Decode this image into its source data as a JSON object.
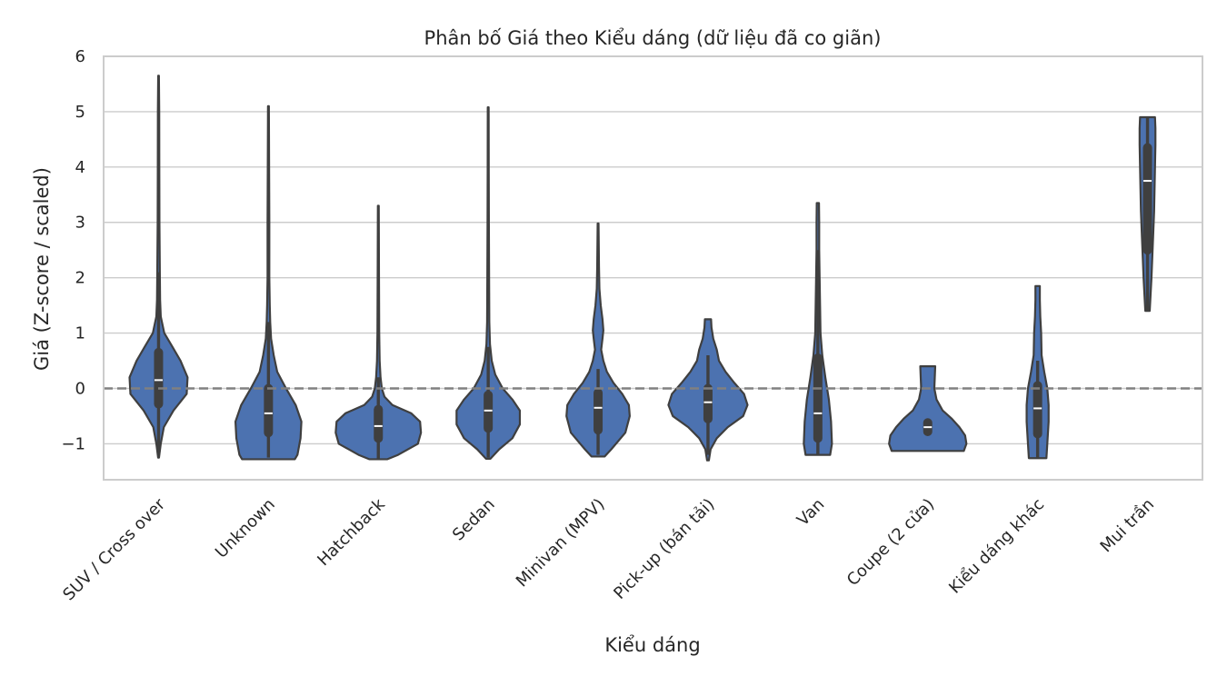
{
  "chart_data": {
    "type": "violin",
    "title": "Phân bố Giá theo Kiểu dáng (dữ liệu đã co giãn)",
    "xlabel": "Kiểu dáng",
    "ylabel": "Giá (Z-score / scaled)",
    "ylim": [
      -1.65,
      6
    ],
    "yticks": [
      -1,
      0,
      1,
      2,
      3,
      4,
      5,
      6
    ],
    "ytick_labels": [
      "−1",
      "0",
      "1",
      "2",
      "3",
      "4",
      "5",
      "6"
    ],
    "grid": true,
    "reference_line": {
      "y": 0,
      "style": "dashed",
      "color": "#808080"
    },
    "fill_color": "#4c72b0",
    "categories": [
      "SUV / Cross over",
      "Unknown",
      "Hatchback",
      "Sedan",
      "Minivan (MPV)",
      "Pick-up (bán tải)",
      "Van",
      "Coupe (2 cửa)",
      "Kiểu dáng khác",
      "Mui trần"
    ],
    "series": [
      {
        "min": -1.25,
        "max": 5.65,
        "q1": -0.28,
        "median": 0.15,
        "q3": 0.65,
        "whisker_low": -1.2,
        "whisker_high": 2.1,
        "profile": [
          [
            -1.25,
            0.01
          ],
          [
            -1.0,
            0.05
          ],
          [
            -0.7,
            0.12
          ],
          [
            -0.4,
            0.34
          ],
          [
            -0.1,
            0.64
          ],
          [
            0.2,
            0.66
          ],
          [
            0.5,
            0.5
          ],
          [
            0.8,
            0.28
          ],
          [
            1.0,
            0.13
          ],
          [
            1.3,
            0.05
          ],
          [
            1.6,
            0.035
          ],
          [
            2.0,
            0.03
          ],
          [
            2.5,
            0.025
          ],
          [
            3.0,
            0.02
          ],
          [
            4.0,
            0.017
          ],
          [
            5.0,
            0.015
          ],
          [
            5.65,
            0.008
          ]
        ]
      },
      {
        "min": -1.28,
        "max": 5.1,
        "q1": -0.8,
        "median": -0.45,
        "q3": 0.0,
        "whisker_low": -1.25,
        "whisker_high": 1.2,
        "profile": [
          [
            -1.28,
            0.6
          ],
          [
            -1.2,
            0.66
          ],
          [
            -0.9,
            0.73
          ],
          [
            -0.6,
            0.75
          ],
          [
            -0.3,
            0.62
          ],
          [
            0.0,
            0.4
          ],
          [
            0.3,
            0.2
          ],
          [
            0.6,
            0.12
          ],
          [
            0.9,
            0.06
          ],
          [
            1.2,
            0.04
          ],
          [
            1.5,
            0.03
          ],
          [
            2.0,
            0.02
          ],
          [
            3.0,
            0.02
          ],
          [
            4.0,
            0.015
          ],
          [
            5.1,
            0.01
          ]
        ]
      },
      {
        "min": -1.28,
        "max": 3.3,
        "q1": -0.9,
        "median": -0.68,
        "q3": -0.38,
        "whisker_low": -1.28,
        "whisker_high": 0.2,
        "profile": [
          [
            -1.28,
            0.2
          ],
          [
            -1.2,
            0.45
          ],
          [
            -1.0,
            0.9
          ],
          [
            -0.8,
            0.97
          ],
          [
            -0.6,
            0.95
          ],
          [
            -0.45,
            0.75
          ],
          [
            -0.3,
            0.32
          ],
          [
            -0.15,
            0.14
          ],
          [
            0.0,
            0.08
          ],
          [
            0.2,
            0.05
          ],
          [
            0.5,
            0.03
          ],
          [
            1.0,
            0.02
          ],
          [
            2.0,
            0.015
          ],
          [
            3.3,
            0.01
          ]
        ]
      },
      {
        "min": -1.27,
        "max": 5.08,
        "q1": -0.72,
        "median": -0.4,
        "q3": -0.12,
        "whisker_low": -1.25,
        "whisker_high": 0.75,
        "profile": [
          [
            -1.27,
            0.05
          ],
          [
            -1.1,
            0.25
          ],
          [
            -0.9,
            0.55
          ],
          [
            -0.65,
            0.72
          ],
          [
            -0.4,
            0.72
          ],
          [
            -0.2,
            0.55
          ],
          [
            0.0,
            0.33
          ],
          [
            0.25,
            0.16
          ],
          [
            0.5,
            0.08
          ],
          [
            0.8,
            0.04
          ],
          [
            1.2,
            0.025
          ],
          [
            2.0,
            0.02
          ],
          [
            3.0,
            0.015
          ],
          [
            4.0,
            0.012
          ],
          [
            5.08,
            0.01
          ]
        ]
      },
      {
        "min": -1.23,
        "max": 2.98,
        "q1": -0.75,
        "median": -0.35,
        "q3": -0.08,
        "whisker_low": -1.2,
        "whisker_high": 0.35,
        "profile": [
          [
            -1.23,
            0.15
          ],
          [
            -1.1,
            0.3
          ],
          [
            -0.8,
            0.62
          ],
          [
            -0.5,
            0.72
          ],
          [
            -0.3,
            0.7
          ],
          [
            -0.1,
            0.55
          ],
          [
            0.1,
            0.35
          ],
          [
            0.3,
            0.2
          ],
          [
            0.5,
            0.12
          ],
          [
            0.7,
            0.07
          ],
          [
            0.9,
            0.1
          ],
          [
            1.05,
            0.12
          ],
          [
            1.25,
            0.1
          ],
          [
            1.5,
            0.06
          ],
          [
            1.8,
            0.03
          ],
          [
            2.2,
            0.02
          ],
          [
            2.98,
            0.01
          ]
        ]
      },
      {
        "min": -1.3,
        "max": 1.25,
        "q1": -0.55,
        "median": -0.25,
        "q3": 0.0,
        "whisker_low": -1.2,
        "whisker_high": 0.6,
        "profile": [
          [
            -1.3,
            0.02
          ],
          [
            -1.1,
            0.06
          ],
          [
            -0.9,
            0.2
          ],
          [
            -0.7,
            0.45
          ],
          [
            -0.5,
            0.8
          ],
          [
            -0.3,
            0.9
          ],
          [
            -0.1,
            0.82
          ],
          [
            0.1,
            0.6
          ],
          [
            0.3,
            0.4
          ],
          [
            0.5,
            0.25
          ],
          [
            0.7,
            0.2
          ],
          [
            0.9,
            0.12
          ],
          [
            1.1,
            0.08
          ],
          [
            1.25,
            0.07
          ]
        ]
      },
      {
        "min": -1.2,
        "max": 3.35,
        "q1": -0.9,
        "median": -0.45,
        "q3": 0.55,
        "whisker_low": -1.2,
        "whisker_high": 2.5,
        "profile": [
          [
            -1.2,
            0.28
          ],
          [
            -1.0,
            0.32
          ],
          [
            -0.6,
            0.3
          ],
          [
            -0.2,
            0.25
          ],
          [
            0.2,
            0.17
          ],
          [
            0.6,
            0.1
          ],
          [
            1.0,
            0.06
          ],
          [
            1.5,
            0.05
          ],
          [
            2.0,
            0.04
          ],
          [
            2.5,
            0.03
          ],
          [
            3.0,
            0.03
          ],
          [
            3.35,
            0.025
          ]
        ]
      },
      {
        "min": -1.13,
        "max": 0.4,
        "q1": -0.78,
        "median": -0.7,
        "q3": -0.62,
        "whisker_low": -0.78,
        "whisker_high": -0.62,
        "profile": [
          [
            -1.13,
            0.82
          ],
          [
            -1.0,
            0.88
          ],
          [
            -0.85,
            0.85
          ],
          [
            -0.7,
            0.72
          ],
          [
            -0.55,
            0.55
          ],
          [
            -0.4,
            0.34
          ],
          [
            -0.2,
            0.2
          ],
          [
            0.0,
            0.15
          ],
          [
            0.2,
            0.16
          ],
          [
            0.4,
            0.17
          ]
        ]
      },
      {
        "min": -1.26,
        "max": 1.85,
        "q1": -0.82,
        "median": -0.36,
        "q3": 0.05,
        "whisker_low": -1.26,
        "whisker_high": 0.5,
        "profile": [
          [
            -1.26,
            0.2
          ],
          [
            -1.0,
            0.22
          ],
          [
            -0.6,
            0.25
          ],
          [
            -0.3,
            0.25
          ],
          [
            0.0,
            0.22
          ],
          [
            0.3,
            0.15
          ],
          [
            0.6,
            0.09
          ],
          [
            1.0,
            0.08
          ],
          [
            1.3,
            0.06
          ],
          [
            1.6,
            0.05
          ],
          [
            1.85,
            0.05
          ]
        ]
      },
      {
        "min": 1.4,
        "max": 4.9,
        "q1": 2.5,
        "median": 3.75,
        "q3": 4.35,
        "whisker_low": 1.4,
        "whisker_high": 4.9,
        "profile": [
          [
            1.4,
            0.05
          ],
          [
            1.7,
            0.07
          ],
          [
            2.0,
            0.09
          ],
          [
            2.4,
            0.11
          ],
          [
            2.8,
            0.13
          ],
          [
            3.2,
            0.15
          ],
          [
            3.6,
            0.16
          ],
          [
            4.0,
            0.17
          ],
          [
            4.4,
            0.18
          ],
          [
            4.7,
            0.18
          ],
          [
            4.9,
            0.17
          ]
        ]
      }
    ]
  }
}
